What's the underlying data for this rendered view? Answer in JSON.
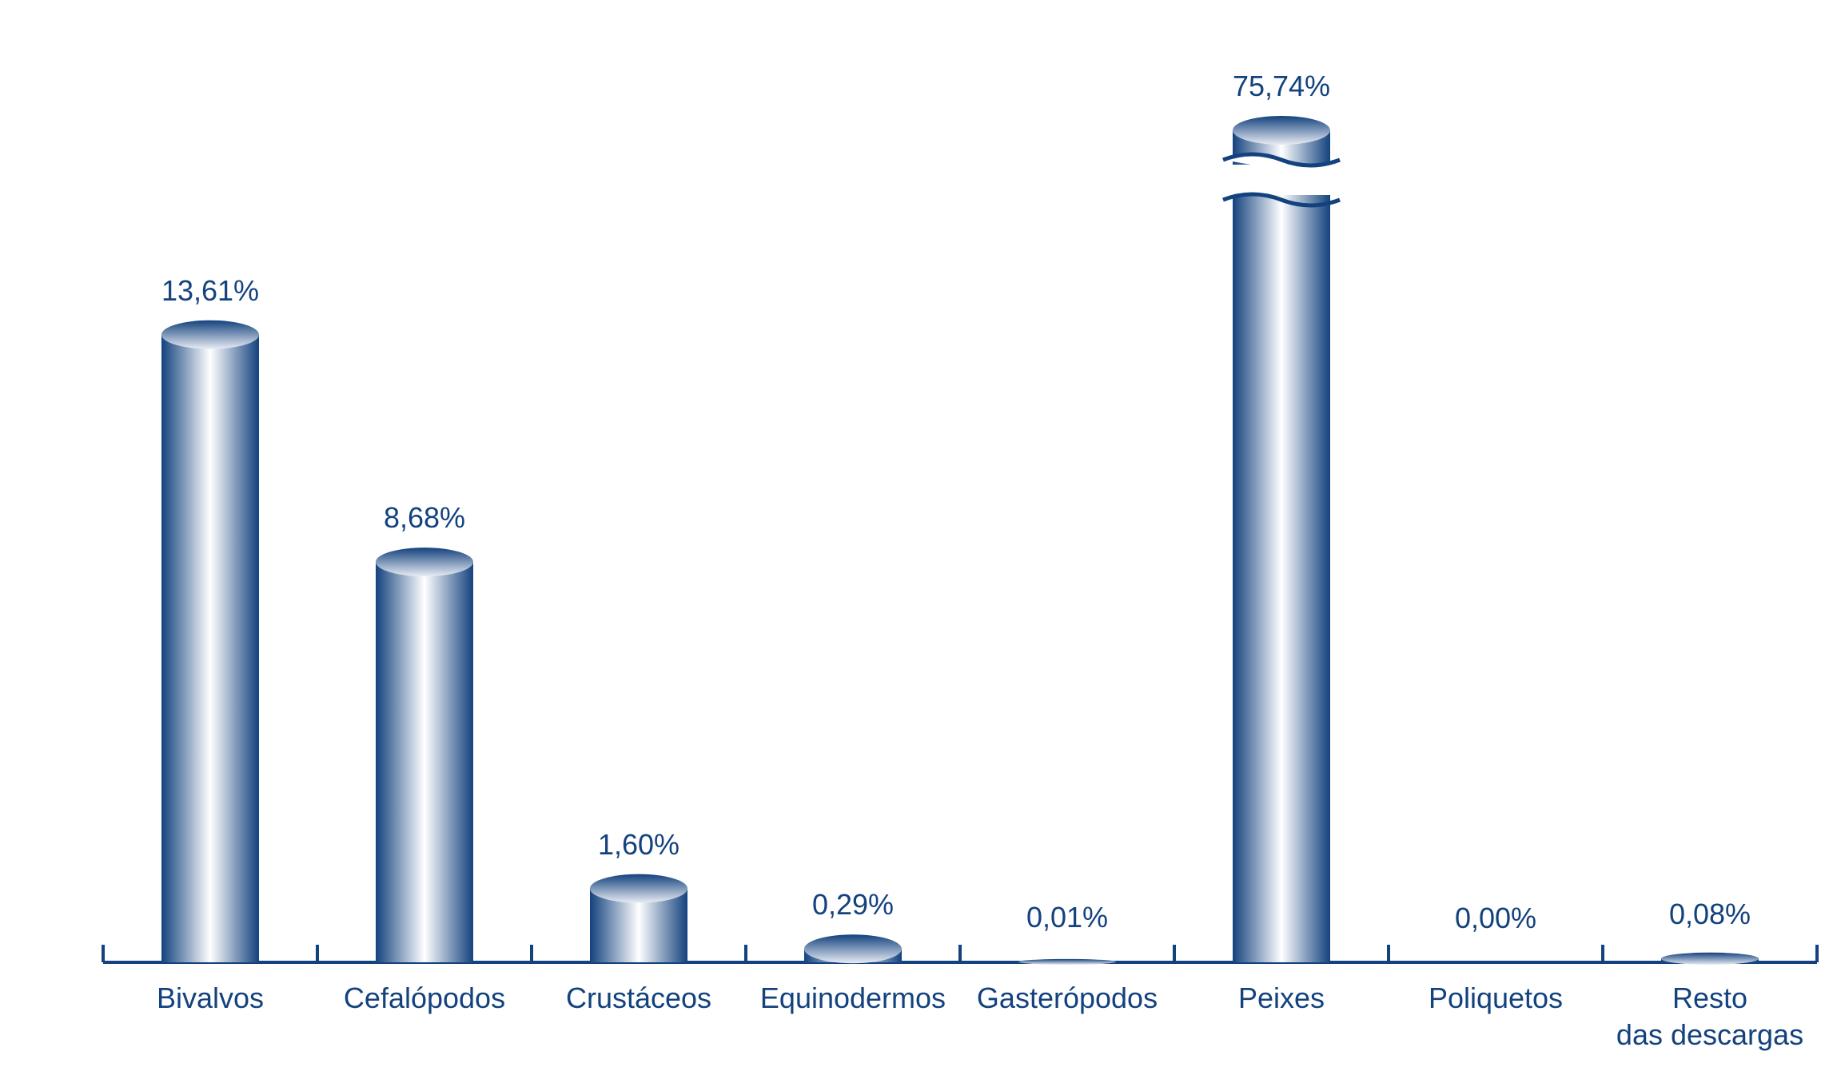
{
  "chart_data": {
    "type": "bar",
    "categories": [
      "Bivalvos",
      "Cefalópodos",
      "Crustáceos",
      "Equinodermos",
      "Gasterópodos",
      "Peixes",
      "Poliquetos",
      "Resto\ndas descargas"
    ],
    "values": [
      13.61,
      8.68,
      1.6,
      0.29,
      0.01,
      75.74,
      0.0,
      0.08
    ],
    "value_labels": [
      "13,61%",
      "8,68%",
      "1,60%",
      "0,29%",
      "0,01%",
      "75,74%",
      "0,00%",
      "0,08%"
    ],
    "color": "#13427e"
  }
}
